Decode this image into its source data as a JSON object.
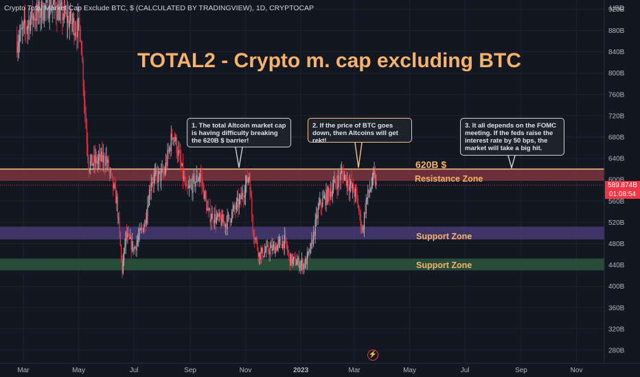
{
  "header": {
    "symbol_title": "Crypto Total Market Cap Exclude BTC, $ (CALCULATED BY TRADINGVIEW), 1D, CRYPTOCAP",
    "currency": "USD"
  },
  "annotations": {
    "title": "TOTAL2 - Crypto m. cap excluding BTC",
    "callouts": [
      {
        "text": "1. The total Altcoin market cap is having difficulty breaking the 620B $ barrier!",
        "style": "white"
      },
      {
        "text": "2. If the price of BTC goes down, then Altcoins will get rekt!",
        "style": "orange"
      },
      {
        "text": "3. It all depends on the FOMC meeting. If the feds raise the interest rate by 50 bps, the market will take a big hit.",
        "style": "white"
      }
    ],
    "level_label": "620B $",
    "resistance_label": "Resistance Zone",
    "support1_label": "Support Zone",
    "support2_label": "Support Zone"
  },
  "price_tag": {
    "price": "589.874B",
    "countdown": "01:08:54"
  },
  "colors": {
    "up": "#b2b5be",
    "down": "#f23645",
    "resistance": "#8a3a43",
    "support1": "#4a3d78",
    "support2": "#2e5a3e",
    "accent": "#f6b26b",
    "background": "#131722"
  },
  "icons": {
    "flash": "lightning-icon"
  },
  "chart_data": {
    "type": "candlestick",
    "x_ticks": [
      "Mar",
      "May",
      "Jul",
      "Sep",
      "Nov",
      "2023",
      "Mar",
      "May",
      "Jul",
      "Sep",
      "Nov"
    ],
    "y_ticks": [
      "280B",
      "320B",
      "360B",
      "400B",
      "440B",
      "480B",
      "520B",
      "560B",
      "600B",
      "640B",
      "680B",
      "720B",
      "760B",
      "800B",
      "840B",
      "880B",
      "920B"
    ],
    "ylim": [
      260,
      930
    ],
    "resistance_zone": [
      598,
      620
    ],
    "support_zones": [
      [
        488,
        512
      ],
      [
        430,
        452
      ]
    ],
    "level": 620,
    "last_price": 589.874,
    "series_close_path": [
      {
        "x": "2022-02-22",
        "close": 860
      },
      {
        "x": "2022-03-10",
        "close": 905
      },
      {
        "x": "2022-04-01",
        "close": 930
      },
      {
        "x": "2022-04-20",
        "close": 900
      },
      {
        "x": "2022-05-03",
        "close": 880
      },
      {
        "x": "2022-05-09",
        "close": 700
      },
      {
        "x": "2022-05-12",
        "close": 630
      },
      {
        "x": "2022-05-31",
        "close": 640
      },
      {
        "x": "2022-06-12",
        "close": 560
      },
      {
        "x": "2022-06-18",
        "close": 430
      },
      {
        "x": "2022-06-22",
        "close": 495
      },
      {
        "x": "2022-07-01",
        "close": 470
      },
      {
        "x": "2022-07-13",
        "close": 520
      },
      {
        "x": "2022-07-20",
        "close": 600
      },
      {
        "x": "2022-08-03",
        "close": 610
      },
      {
        "x": "2022-08-13",
        "close": 690
      },
      {
        "x": "2022-08-20",
        "close": 640
      },
      {
        "x": "2022-08-28",
        "close": 575
      },
      {
        "x": "2022-09-12",
        "close": 610
      },
      {
        "x": "2022-09-21",
        "close": 535
      },
      {
        "x": "2022-10-10",
        "close": 518
      },
      {
        "x": "2022-10-26",
        "close": 560
      },
      {
        "x": "2022-11-05",
        "close": 610
      },
      {
        "x": "2022-11-09",
        "close": 510
      },
      {
        "x": "2022-11-16",
        "close": 460
      },
      {
        "x": "2022-11-30",
        "close": 470
      },
      {
        "x": "2022-12-14",
        "close": 485
      },
      {
        "x": "2022-12-20",
        "close": 450
      },
      {
        "x": "2023-01-05",
        "close": 440
      },
      {
        "x": "2023-01-12",
        "close": 470
      },
      {
        "x": "2023-01-21",
        "close": 550
      },
      {
        "x": "2023-02-01",
        "close": 575
      },
      {
        "x": "2023-02-16",
        "close": 612
      },
      {
        "x": "2023-03-03",
        "close": 570
      },
      {
        "x": "2023-03-10",
        "close": 503
      },
      {
        "x": "2023-03-14",
        "close": 560
      },
      {
        "x": "2023-03-23",
        "close": 605
      },
      {
        "x": "2023-03-25",
        "close": 589.874
      }
    ]
  }
}
